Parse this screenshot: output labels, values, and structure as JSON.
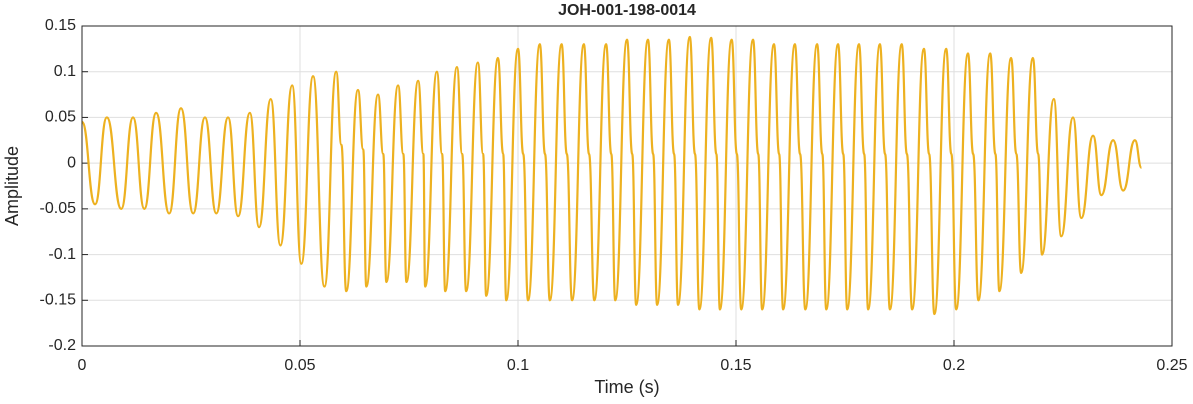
{
  "chart_data": {
    "type": "line",
    "title": "JOH-001-198-0014",
    "xlabel": "Time (s)",
    "ylabel": "Amplitude",
    "xlim": [
      0,
      0.25
    ],
    "ylim": [
      -0.2,
      0.15
    ],
    "xticks": [
      0,
      0.05,
      0.1,
      0.15,
      0.2,
      0.25
    ],
    "yticks": [
      -0.2,
      -0.15,
      -0.1,
      -0.05,
      0,
      0.05,
      0.1,
      0.15
    ],
    "grid": true,
    "series": [
      {
        "color": "#EDB120",
        "x": [
          0,
          0.003,
          0.0057,
          0.009,
          0.0117,
          0.0143,
          0.017,
          0.02,
          0.0227,
          0.0255,
          0.0282,
          0.0308,
          0.0335,
          0.0358,
          0.0385,
          0.0406,
          0.0433,
          0.0455,
          0.0482,
          0.0503,
          0.053,
          0.0556,
          0.0583,
          0.0595,
          0.0606,
          0.0633,
          0.0645,
          0.0652,
          0.0679,
          0.0691,
          0.0698,
          0.0725,
          0.0737,
          0.0744,
          0.0771,
          0.0783,
          0.0787,
          0.0814,
          0.0826,
          0.0833,
          0.086,
          0.0872,
          0.0881,
          0.0908,
          0.092,
          0.0927,
          0.0954,
          0.0966,
          0.0973,
          0.1,
          0.1012,
          0.1023,
          0.105,
          0.1062,
          0.1073,
          0.11,
          0.1112,
          0.1124,
          0.1151,
          0.1163,
          0.1175,
          0.1202,
          0.1214,
          0.1223,
          0.125,
          0.1262,
          0.1271,
          0.1298,
          0.131,
          0.1319,
          0.1346,
          0.1358,
          0.1367,
          0.1394,
          0.1406,
          0.1416,
          0.1443,
          0.1455,
          0.1463,
          0.149,
          0.1502,
          0.1512,
          0.1539,
          0.1551,
          0.156,
          0.1587,
          0.1599,
          0.1608,
          0.1635,
          0.1647,
          0.1659,
          0.1686,
          0.1698,
          0.1707,
          0.1734,
          0.1746,
          0.1755,
          0.1782,
          0.1794,
          0.1803,
          0.183,
          0.1842,
          0.1853,
          0.188,
          0.1892,
          0.1904,
          0.1931,
          0.1943,
          0.1955,
          0.1982,
          0.1994,
          0.2005,
          0.2032,
          0.2044,
          0.2056,
          0.2083,
          0.2095,
          0.2104,
          0.2131,
          0.2143,
          0.2154,
          0.2181,
          0.2193,
          0.2202,
          0.2229,
          0.2246,
          0.2273,
          0.2292,
          0.2319,
          0.2338,
          0.2365,
          0.2388,
          0.2415,
          0.243
        ],
        "values": [
          0.045,
          -0.045,
          0.05,
          -0.05,
          0.05,
          -0.05,
          0.055,
          -0.055,
          0.06,
          -0.055,
          0.05,
          -0.055,
          0.05,
          -0.058,
          0.055,
          -0.07,
          0.07,
          -0.09,
          0.085,
          -0.11,
          0.095,
          -0.135,
          0.1,
          0.02,
          -0.14,
          0.08,
          0.015,
          -0.135,
          0.075,
          0.01,
          -0.13,
          0.085,
          0.01,
          -0.13,
          0.09,
          0.01,
          -0.135,
          0.1,
          0.01,
          -0.14,
          0.105,
          0.01,
          -0.14,
          0.11,
          0.01,
          -0.145,
          0.115,
          0.01,
          -0.15,
          0.125,
          0.01,
          -0.15,
          0.13,
          0.01,
          -0.15,
          0.13,
          0.01,
          -0.15,
          0.13,
          0.01,
          -0.15,
          0.13,
          0.01,
          -0.15,
          0.135,
          0.01,
          -0.155,
          0.135,
          0.01,
          -0.155,
          0.135,
          0.01,
          -0.155,
          0.138,
          0.01,
          -0.16,
          0.137,
          0.01,
          -0.16,
          0.135,
          0.01,
          -0.16,
          0.135,
          0.01,
          -0.16,
          0.13,
          0.01,
          -0.16,
          0.13,
          0.01,
          -0.16,
          0.13,
          0.01,
          -0.16,
          0.13,
          0.01,
          -0.16,
          0.13,
          0.01,
          -0.16,
          0.13,
          0.01,
          -0.16,
          0.13,
          0.01,
          -0.16,
          0.125,
          0.01,
          -0.165,
          0.125,
          0.01,
          -0.16,
          0.12,
          0.01,
          -0.15,
          0.12,
          0.01,
          -0.14,
          0.115,
          0.01,
          -0.12,
          0.115,
          0.01,
          -0.1,
          0.07,
          -0.08,
          0.05,
          -0.06,
          0.03,
          -0.035,
          0.025,
          -0.03,
          0.025,
          -0.005
        ]
      }
    ]
  }
}
